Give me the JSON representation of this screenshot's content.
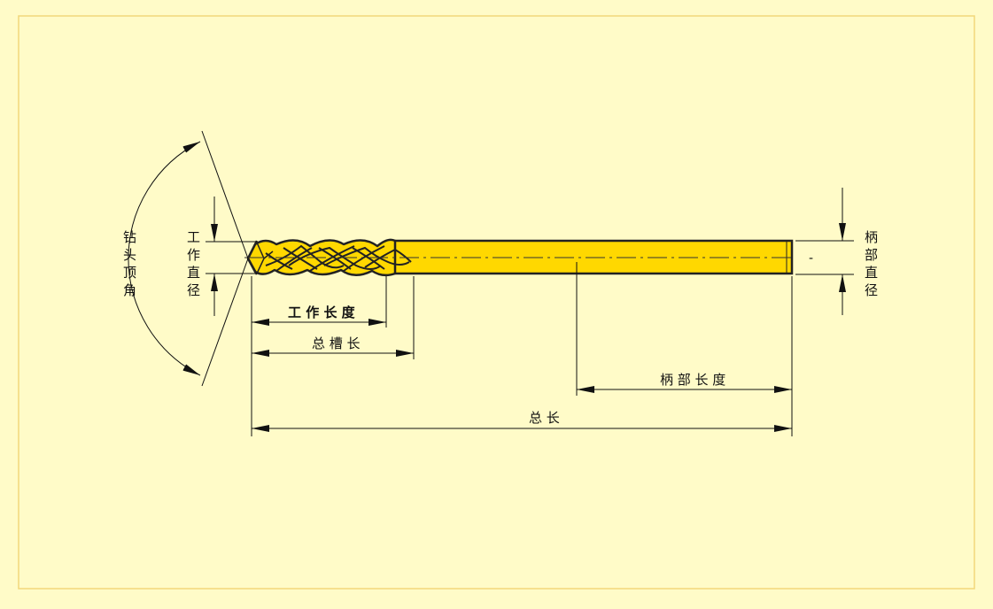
{
  "colors": {
    "background": "#fffbc8",
    "frame": "#f2d77a",
    "drill_fill": "#ffd800",
    "outline": "#222222",
    "dim_line": "#111111"
  },
  "labels": {
    "point_angle": [
      "钻",
      "头",
      "顶",
      "角"
    ],
    "working_diameter": [
      "工",
      "作",
      "直",
      "径"
    ],
    "shank_diameter": [
      "柄",
      "部",
      "直",
      "径"
    ],
    "working_length": "工 作 长 度",
    "total_flute_length": "总 槽 长",
    "shank_length": "柄 部 长 度",
    "overall_length": "总 长",
    "dash_mark": "-"
  }
}
